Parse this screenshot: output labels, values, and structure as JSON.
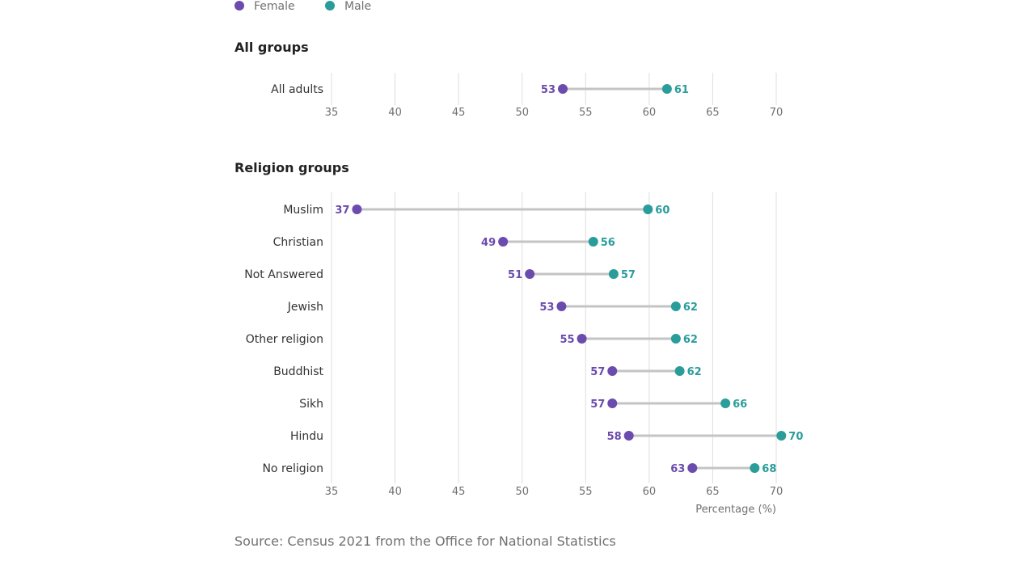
{
  "legend": [
    {
      "label": "Female",
      "color": "#6B4BAE"
    },
    {
      "label": "Male",
      "color": "#2A9D9A"
    }
  ],
  "colors": {
    "female": "#6B4BAE",
    "male": "#2A9D9A",
    "connector": "#C4C4C4",
    "grid": "#DDDDDD"
  },
  "source": "Source: Census 2021 from the Office for National Statistics",
  "chart_data": [
    {
      "type": "dumbbell",
      "title": "All groups",
      "xlim": [
        35,
        70
      ],
      "xticks": [
        35,
        40,
        45,
        50,
        55,
        60,
        65,
        70
      ],
      "xlabel": "",
      "categories": [
        "All adults"
      ],
      "series": [
        {
          "name": "Female",
          "values": [
            53.2
          ]
        },
        {
          "name": "Male",
          "values": [
            61.4
          ]
        }
      ],
      "value_labels": {
        "Female": [
          "53"
        ],
        "Male": [
          "61"
        ]
      }
    },
    {
      "type": "dumbbell",
      "title": "Religion groups",
      "xlim": [
        35,
        70
      ],
      "xticks": [
        35,
        40,
        45,
        50,
        55,
        60,
        65,
        70
      ],
      "xlabel": "Percentage (%)",
      "categories": [
        "Muslim",
        "Christian",
        "Not Answered",
        "Jewish",
        "Other religion",
        "Buddhist",
        "Sikh",
        "Hindu",
        "No religion"
      ],
      "series": [
        {
          "name": "Female",
          "values": [
            37.0,
            48.5,
            50.6,
            53.1,
            54.7,
            57.1,
            57.1,
            58.4,
            63.4
          ]
        },
        {
          "name": "Male",
          "values": [
            59.9,
            55.6,
            57.2,
            62.1,
            62.1,
            62.4,
            66.0,
            70.4,
            68.3
          ]
        }
      ],
      "value_labels": {
        "Female": [
          "37",
          "49",
          "51",
          "53",
          "55",
          "57",
          "57",
          "58",
          "63"
        ],
        "Male": [
          "60",
          "56",
          "57",
          "62",
          "62",
          "62",
          "66",
          "70",
          "68"
        ]
      }
    }
  ]
}
